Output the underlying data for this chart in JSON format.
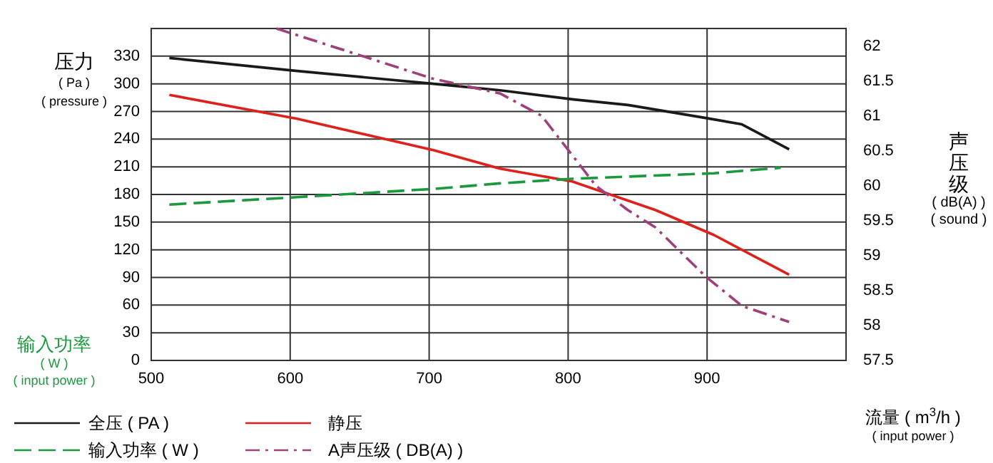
{
  "chart_data": {
    "type": "line",
    "xlabel": "流量 ( m$^{3}$/h )",
    "ylabel": "压力\n( Pa )\n( pressure )",
    "y2label": "声压级\n( dB(A) )\n( sound )",
    "annotations": [
      "输入功率\n( W )\n( input power )",
      "( input power )"
    ],
    "xlim": [
      500,
      1000
    ],
    "xticks": [
      500,
      600,
      700,
      800,
      900
    ],
    "ylim": [
      0,
      360
    ],
    "yticks": [
      0,
      30,
      60,
      90,
      120,
      150,
      180,
      210,
      240,
      270,
      300,
      330
    ],
    "y2lim": [
      57.5,
      62.25
    ],
    "y2ticks": [
      57.5,
      58,
      58.5,
      59,
      59.5,
      60,
      60.5,
      61,
      61.5,
      62
    ],
    "grid": true,
    "legend": "bottom",
    "marker": "none",
    "series": [
      {
        "name": "全压 ( PA )",
        "color": "#1a1a1a",
        "line_style": "solid",
        "x": [
          513,
          605,
          703,
          751,
          804,
          843,
          899,
          925,
          959
        ],
        "values": [
          328,
          314,
          300,
          293,
          283,
          277,
          263,
          256,
          229
        ]
      },
      {
        "name": "静压",
        "color": "#e0201b",
        "line_style": "solid",
        "x": [
          513,
          605,
          703,
          751,
          803,
          863,
          905,
          959
        ],
        "values": [
          288,
          262,
          228,
          208,
          194,
          163,
          136,
          93
        ]
      },
      {
        "name": "输入功率 ( W )",
        "color": "#1a9a3c",
        "line_style": "dashed",
        "x": [
          513,
          605,
          703,
          751,
          803,
          905,
          953
        ],
        "values": [
          169,
          177,
          186,
          192,
          197,
          203,
          209
        ]
      },
      {
        "name": "A声压级 ( DB(A) )",
        "color": "#a0407a",
        "line_style": "dashdot",
        "axis": "y2",
        "x": [
          590,
          703,
          751,
          781,
          820,
          843,
          863,
          899,
          925,
          959
        ],
        "values": [
          62.25,
          61.53,
          61.32,
          61.0,
          60.0,
          59.65,
          59.4,
          58.7,
          58.28,
          58.05
        ]
      }
    ]
  }
}
